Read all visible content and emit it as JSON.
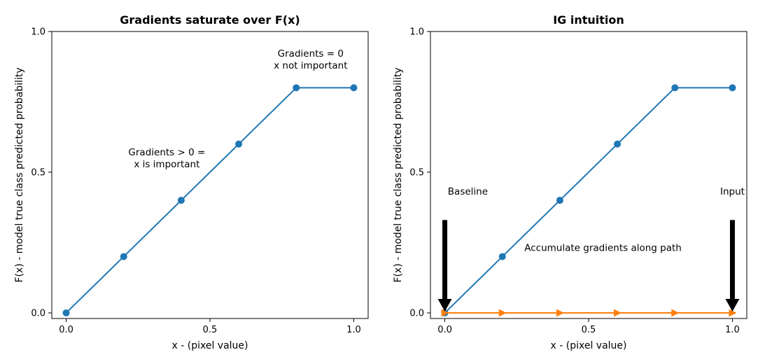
{
  "chart_data": [
    {
      "type": "line",
      "title": "Gradients saturate over F(x)",
      "xlabel": "x - (pixel value)",
      "ylabel": "F(x) - model true class predicted probability",
      "xlim": [
        -0.05,
        1.05
      ],
      "ylim": [
        -0.02,
        1.0
      ],
      "xticks": [
        "0.0",
        "0.5",
        "1.0"
      ],
      "yticks": [
        "0.0",
        "0.5",
        "1.0"
      ],
      "grid": false,
      "series": [
        {
          "color": "#1f77b4",
          "marker": "circle",
          "x": [
            0.0,
            0.2,
            0.4,
            0.6,
            0.8,
            1.0
          ],
          "y": [
            0.0,
            0.2,
            0.4,
            0.6,
            0.8,
            0.8
          ]
        }
      ],
      "annotations": [
        {
          "lines": [
            "Gradients > 0 =",
            " x is important"
          ],
          "x": 0.35,
          "y": 0.56
        },
        {
          "lines": [
            "Gradients = 0",
            " x not important"
          ],
          "x": 0.85,
          "y": 0.91
        }
      ]
    },
    {
      "type": "line",
      "title": "IG intuition",
      "xlabel": "x - (pixel value)",
      "ylabel": "F(x) - model true class predicted probability",
      "xlim": [
        -0.05,
        1.05
      ],
      "ylim": [
        -0.02,
        1.0
      ],
      "xticks": [
        "0.0",
        "0.5",
        "1.0"
      ],
      "yticks": [
        "0.0",
        "0.5",
        "1.0"
      ],
      "grid": false,
      "series": [
        {
          "color": "#1f77b4",
          "marker": "circle",
          "x": [
            0.0,
            0.2,
            0.4,
            0.6,
            0.8,
            1.0
          ],
          "y": [
            0.0,
            0.2,
            0.4,
            0.6,
            0.8,
            0.8
          ]
        },
        {
          "color": "#ff7f0e",
          "marker": "triangle-right",
          "x": [
            0.0,
            0.2,
            0.4,
            0.6,
            0.8,
            1.0
          ],
          "y": [
            0.0,
            0.0,
            0.0,
            0.0,
            0.0,
            0.0
          ]
        }
      ],
      "annotations": [
        {
          "lines": [
            "Baseline"
          ],
          "x": 0.08,
          "y": 0.42
        },
        {
          "lines": [
            "Accumulate gradients along path"
          ],
          "x": 0.55,
          "y": 0.22
        },
        {
          "lines": [
            "Input"
          ],
          "x": 1.0,
          "y": 0.42
        }
      ],
      "arrows": [
        {
          "name": "baseline-arrow",
          "x": 0.0,
          "from": 0.33,
          "to": 0.0
        },
        {
          "name": "input-arrow",
          "x": 1.0,
          "from": 0.33,
          "to": 0.0
        }
      ]
    }
  ]
}
